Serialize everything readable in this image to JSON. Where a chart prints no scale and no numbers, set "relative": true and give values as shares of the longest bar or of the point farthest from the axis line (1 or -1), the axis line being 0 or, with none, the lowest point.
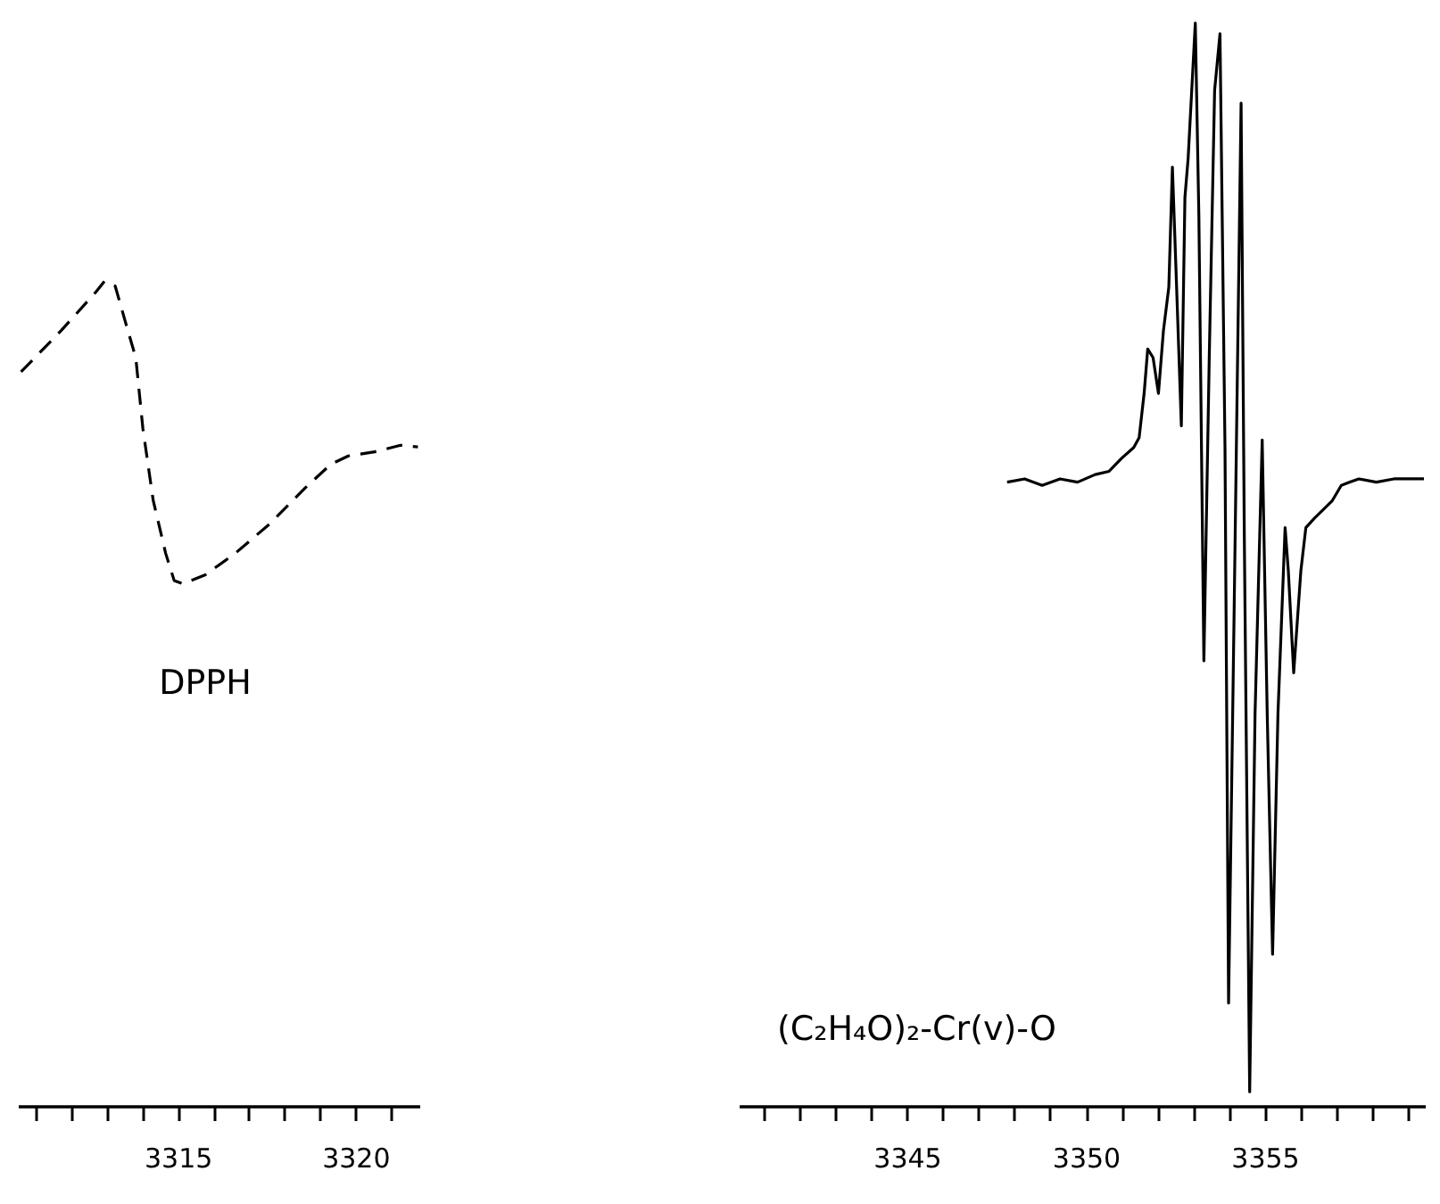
{
  "chart_data": [
    {
      "type": "line",
      "relative": true,
      "line_style": "dashed",
      "tick_labels": "x",
      "xlim": [
        3310.5,
        3321.8
      ],
      "xticks": [
        {
          "value": 3311,
          "label": null
        },
        {
          "value": 3312,
          "label": null
        },
        {
          "value": 3313,
          "label": null
        },
        {
          "value": 3314,
          "label": null
        },
        3315,
        {
          "value": 3316,
          "label": null
        },
        {
          "value": 3317,
          "label": null
        },
        {
          "value": 3318,
          "label": null
        },
        {
          "value": 3319,
          "label": null
        },
        3320,
        {
          "value": 3321,
          "label": null
        }
      ],
      "x": [
        3310.59,
        3311.72,
        3312.7,
        3312.94,
        3313.24,
        3313.53,
        3313.82,
        3314.02,
        3314.31,
        3314.66,
        3314.9,
        3315.15,
        3315.78,
        3316.62,
        3317.6,
        3318.58,
        3319.31,
        3319.8,
        3320.54,
        3321.27,
        3321.76
      ],
      "series": [
        {
          "name": "DPPH",
          "color": "#000000",
          "values": [
            0.89,
            0.94,
            0.987,
            1,
            0.994,
            0.95,
            0.907,
            0.821,
            0.734,
            0.67,
            0.637,
            0.633,
            0.644,
            0.67,
            0.706,
            0.749,
            0.778,
            0.788,
            0.793,
            0.801,
            0.799
          ]
        }
      ]
    },
    {
      "type": "line",
      "relative": true,
      "line_style": "solid",
      "tick_labels": "x",
      "xlim": [
        3340.3,
        3359.5
      ],
      "xticks": [
        {
          "value": 3341,
          "label": null
        },
        {
          "value": 3342,
          "label": null
        },
        {
          "value": 3343,
          "label": null
        },
        {
          "value": 3344,
          "label": null
        },
        3345,
        {
          "value": 3346,
          "label": null
        },
        {
          "value": 3347,
          "label": null
        },
        {
          "value": 3348,
          "label": null
        },
        {
          "value": 3349,
          "label": null
        },
        3350,
        {
          "value": 3351,
          "label": null
        },
        {
          "value": 3352,
          "label": null
        },
        {
          "value": 3353,
          "label": null
        },
        {
          "value": 3354,
          "label": null
        },
        3355,
        {
          "value": 3356,
          "label": null
        },
        {
          "value": 3357,
          "label": null
        },
        {
          "value": 3358,
          "label": null
        },
        {
          "value": 3359,
          "label": null
        }
      ],
      "x": [
        3347.8,
        3348.29,
        3348.78,
        3349.28,
        3349.77,
        3350.26,
        3350.65,
        3351.0,
        3351.34,
        3351.49,
        3351.63,
        3351.73,
        3351.88,
        3352.03,
        3352.17,
        3352.32,
        3352.42,
        3352.52,
        3352.67,
        3352.77,
        3352.86,
        3353.06,
        3353.16,
        3353.3,
        3353.45,
        3353.6,
        3353.75,
        3353.89,
        3353.99,
        3354.14,
        3354.34,
        3354.43,
        3354.58,
        3354.73,
        3354.93,
        3355.07,
        3355.22,
        3355.37,
        3355.57,
        3355.66,
        3355.81,
        3356.01,
        3356.15,
        3356.4,
        3356.65,
        3356.89,
        3357.14,
        3357.38,
        3357.63,
        3358.12,
        3358.61,
        3359.1,
        3359.45
      ],
      "series": [
        {
          "name": "(C₂H₄O)₂-Cr(v)-O",
          "color": "#000000",
          "values": [
            0.576,
            0.579,
            0.573,
            0.579,
            0.576,
            0.583,
            0.586,
            0.598,
            0.608,
            0.617,
            0.658,
            0.699,
            0.691,
            0.658,
            0.716,
            0.756,
            0.867,
            0.773,
            0.628,
            0.839,
            0.875,
            1,
            0.822,
            0.411,
            0.691,
            0.938,
            0.99,
            0.608,
            0.095,
            0.444,
            0.926,
            0.526,
            0.013,
            0.362,
            0.615,
            0.362,
            0.14,
            0.362,
            0.534,
            0.494,
            0.4,
            0.494,
            0.534,
            0.543,
            0.551,
            0.559,
            0.573,
            0.576,
            0.579,
            0.576,
            0.579,
            0.579,
            0.579
          ]
        }
      ]
    }
  ]
}
